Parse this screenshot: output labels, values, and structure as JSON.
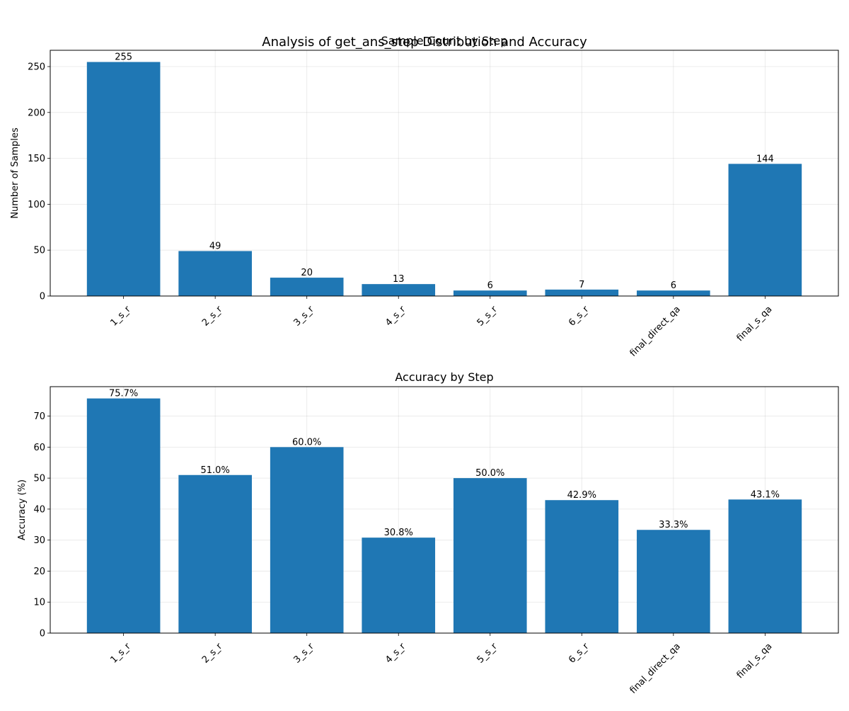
{
  "figure": {
    "suptitle": "Analysis of get_ans_step Distribution and Accuracy",
    "bar_color": "#1f77b4"
  },
  "chart_data": [
    {
      "type": "bar",
      "title": "Sample Count by Step",
      "xlabel": "",
      "ylabel": "Number of Samples",
      "categories": [
        "1_s_r",
        "2_s_r",
        "3_s_r",
        "4_s_r",
        "5_s_r",
        "6_s_r",
        "final_direct_qa",
        "final_s_qa"
      ],
      "values": [
        255,
        49,
        20,
        13,
        6,
        7,
        6,
        144
      ],
      "value_labels": [
        "255",
        "49",
        "20",
        "13",
        "6",
        "7",
        "6",
        "144"
      ],
      "ylim": [
        0,
        267.75
      ],
      "yticks": [
        0,
        50,
        100,
        150,
        200,
        250
      ],
      "grid": true,
      "legend": "none"
    },
    {
      "type": "bar",
      "title": "Accuracy by Step",
      "xlabel": "",
      "ylabel": "Accuracy (%)",
      "categories": [
        "1_s_r",
        "2_s_r",
        "3_s_r",
        "4_s_r",
        "5_s_r",
        "6_s_r",
        "final_direct_qa",
        "final_s_qa"
      ],
      "values": [
        75.7,
        51.0,
        60.0,
        30.8,
        50.0,
        42.9,
        33.3,
        43.1
      ],
      "value_labels": [
        "75.7%",
        "51.0%",
        "60.0%",
        "30.8%",
        "50.0%",
        "42.9%",
        "33.3%",
        "43.1%"
      ],
      "ylim": [
        0,
        79.5
      ],
      "yticks": [
        0,
        10,
        20,
        30,
        40,
        50,
        60,
        70
      ],
      "grid": true,
      "legend": "none"
    }
  ]
}
